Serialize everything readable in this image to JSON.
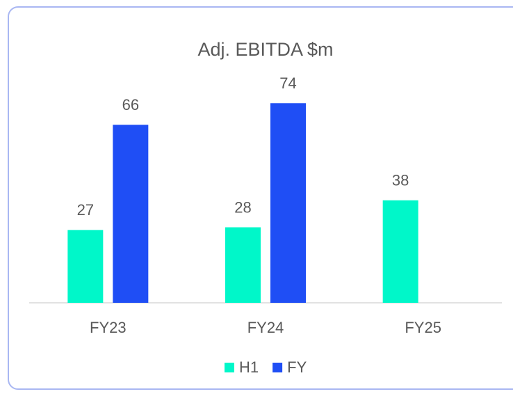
{
  "chart_data": {
    "type": "bar",
    "title": "Adj. EBITDA $m",
    "categories": [
      "FY23",
      "FY24",
      "FY25"
    ],
    "series": [
      {
        "name": "H1",
        "color": "#00f7c9",
        "values": [
          27,
          28,
          38
        ]
      },
      {
        "name": "FY",
        "color": "#1f4ef5",
        "values": [
          66,
          74,
          null
        ]
      }
    ],
    "ylim": [
      0,
      80
    ],
    "legend": "bottom"
  }
}
